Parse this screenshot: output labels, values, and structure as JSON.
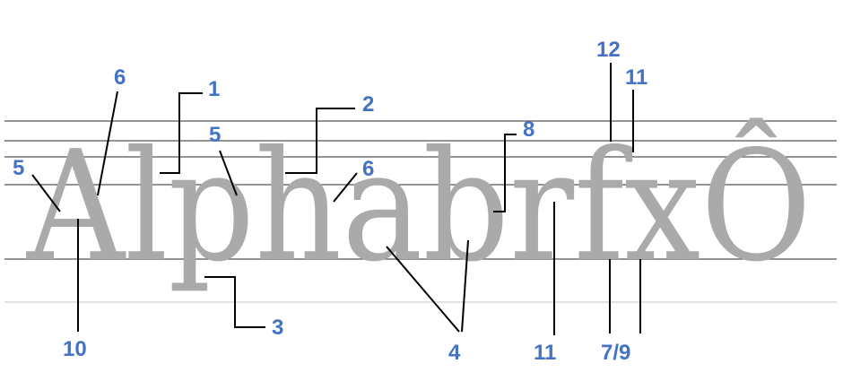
{
  "specimen": {
    "text": "AlphabrfxÔ",
    "color": "#aaaaaa"
  },
  "callouts": [
    {
      "id": "c6a",
      "label": "6"
    },
    {
      "id": "c1",
      "label": "1"
    },
    {
      "id": "c2",
      "label": "2"
    },
    {
      "id": "c5a",
      "label": "5"
    },
    {
      "id": "c5b",
      "label": "5"
    },
    {
      "id": "c6b",
      "label": "6"
    },
    {
      "id": "c8",
      "label": "8"
    },
    {
      "id": "c12",
      "label": "12"
    },
    {
      "id": "c11a",
      "label": "11"
    },
    {
      "id": "c3",
      "label": "3"
    },
    {
      "id": "c10",
      "label": "10"
    },
    {
      "id": "c4",
      "label": "4"
    },
    {
      "id": "c11b",
      "label": "11"
    },
    {
      "id": "c79",
      "label": "7/9"
    }
  ],
  "colors": {
    "callout": "#4472c4",
    "leader": "#000000",
    "guide": "#555555"
  }
}
